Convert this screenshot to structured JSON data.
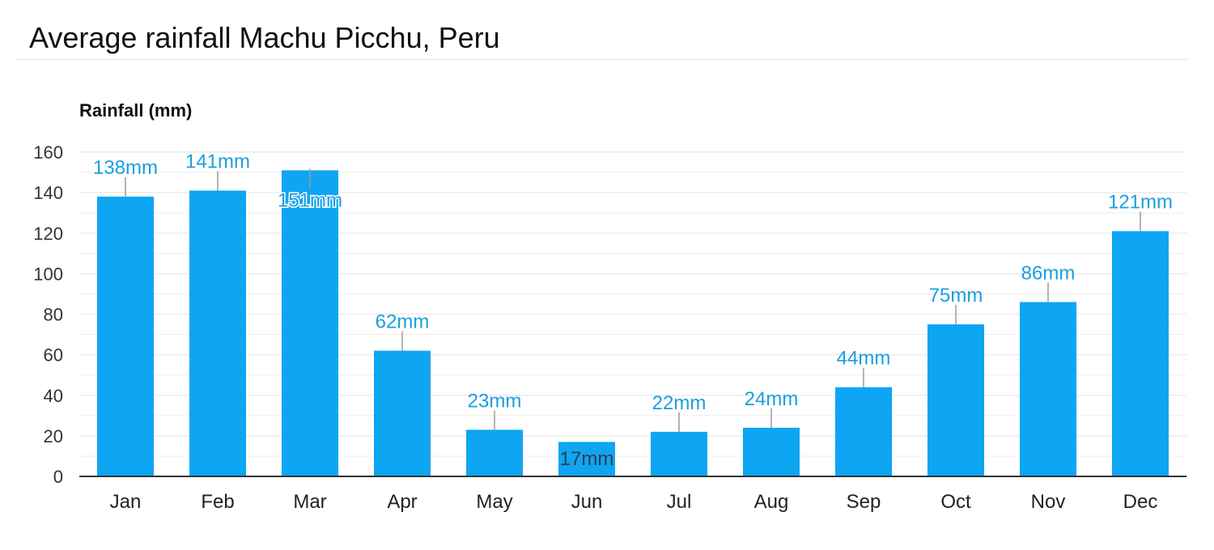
{
  "title": "Average rainfall Machu Picchu, Peru",
  "colors": {
    "bar": "#0ea5f3",
    "label": "#1a9ee0",
    "label_inside": "#2c3e50",
    "grid": "#ececec",
    "axis": "#333333",
    "leader": "#9a9a9a"
  },
  "chart_data": {
    "type": "bar",
    "ylabel": "Rainfall (mm)",
    "xlabel": "",
    "categories": [
      "Jan",
      "Feb",
      "Mar",
      "Apr",
      "May",
      "Jun",
      "Jul",
      "Aug",
      "Sep",
      "Oct",
      "Nov",
      "Dec"
    ],
    "values": [
      138,
      141,
      151,
      62,
      23,
      17,
      22,
      24,
      44,
      75,
      86,
      121
    ],
    "data_labels": [
      "138mm",
      "141mm",
      "151mm",
      "62mm",
      "23mm",
      "17mm",
      "22mm",
      "24mm",
      "44mm",
      "75mm",
      "86mm",
      "121mm"
    ],
    "ylim": [
      0,
      160
    ],
    "yticks": [
      "0",
      "20",
      "40",
      "60",
      "80",
      "100",
      "120",
      "140",
      "160"
    ],
    "grid": true,
    "legend": "none"
  }
}
